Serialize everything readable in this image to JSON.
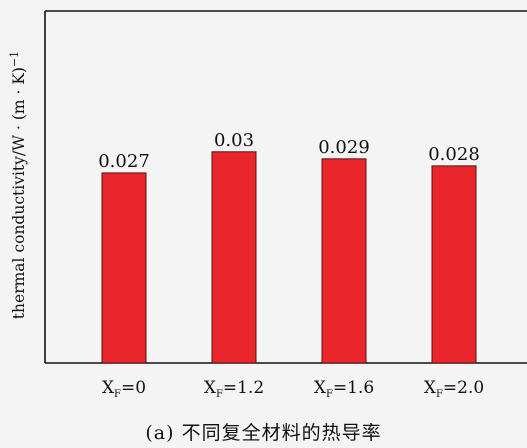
{
  "caption": "(a)  不同复全材料的热导率",
  "colors": {
    "bar": "#e8262b",
    "bar_edge": "#5a1010",
    "axis": "#111111"
  },
  "chart_data": {
    "type": "bar",
    "categories": [
      {
        "base": "X",
        "sub": "F",
        "rest": "=0"
      },
      {
        "base": "X",
        "sub": "F",
        "rest": "=1.2"
      },
      {
        "base": "X",
        "sub": "F",
        "rest": "=1.6"
      },
      {
        "base": "X",
        "sub": "F",
        "rest": "=2.0"
      }
    ],
    "values": [
      0.027,
      0.03,
      0.029,
      0.028
    ],
    "data_labels": [
      "0.027",
      "0.03",
      "0.029",
      "0.028"
    ],
    "ylabel": "thermal conductivity/W · (m · K)",
    "ylabel_sup": "−1",
    "ylim": [
      0,
      0.05
    ],
    "title": "",
    "grid": false
  }
}
